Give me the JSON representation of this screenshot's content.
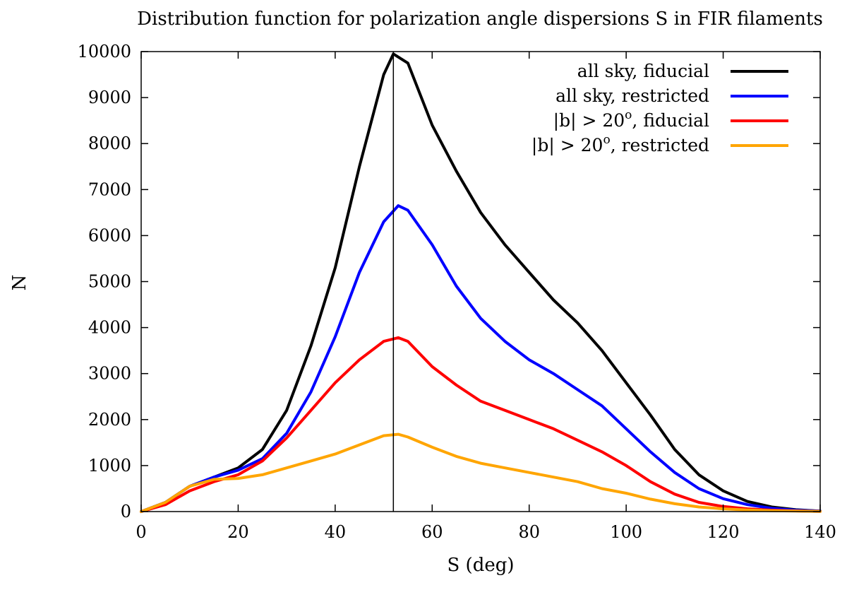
{
  "chart_data": {
    "type": "line",
    "title": "Distribution function for polarization angle dispersions S in FIR filaments",
    "xlabel": "S (deg)",
    "ylabel": "N",
    "xlim": [
      0,
      140
    ],
    "ylim": [
      0,
      10000
    ],
    "xticks": [
      0,
      20,
      40,
      60,
      80,
      100,
      120,
      140
    ],
    "yticks": [
      0,
      1000,
      2000,
      3000,
      4000,
      5000,
      6000,
      7000,
      8000,
      9000,
      10000
    ],
    "grid": false,
    "legend_position": "top-right",
    "reference_line": {
      "x": 52
    },
    "series": [
      {
        "name": "all sky, fiducial",
        "color": "#000000",
        "x": [
          0,
          5,
          10,
          15,
          20,
          25,
          30,
          35,
          40,
          45,
          50,
          52,
          55,
          60,
          65,
          70,
          75,
          80,
          85,
          90,
          95,
          100,
          105,
          110,
          115,
          120,
          125,
          130,
          135,
          140
        ],
        "y": [
          0,
          200,
          550,
          750,
          950,
          1350,
          2200,
          3600,
          5300,
          7500,
          9500,
          9950,
          9750,
          8400,
          7400,
          6500,
          5800,
          5200,
          4600,
          4100,
          3500,
          2800,
          2100,
          1350,
          800,
          450,
          220,
          100,
          40,
          10
        ]
      },
      {
        "name": "all sky, restricted",
        "color": "#0000ff",
        "x": [
          0,
          5,
          10,
          15,
          20,
          25,
          30,
          35,
          40,
          45,
          50,
          53,
          55,
          60,
          65,
          70,
          75,
          80,
          85,
          90,
          95,
          100,
          105,
          110,
          115,
          120,
          125,
          130,
          135,
          140
        ],
        "y": [
          0,
          200,
          550,
          750,
          900,
          1150,
          1700,
          2600,
          3800,
          5200,
          6300,
          6650,
          6550,
          5800,
          4900,
          4200,
          3700,
          3300,
          3000,
          2650,
          2300,
          1800,
          1300,
          850,
          500,
          280,
          150,
          70,
          30,
          10
        ]
      },
      {
        "name": "|b| > 20°, fiducial",
        "color": "#ff0000",
        "x": [
          0,
          5,
          10,
          15,
          20,
          25,
          30,
          35,
          40,
          45,
          50,
          53,
          55,
          60,
          65,
          70,
          75,
          80,
          85,
          90,
          95,
          100,
          105,
          110,
          115,
          120,
          125,
          130,
          135,
          140
        ],
        "y": [
          0,
          150,
          450,
          650,
          800,
          1100,
          1600,
          2200,
          2800,
          3300,
          3700,
          3780,
          3700,
          3150,
          2750,
          2400,
          2200,
          2000,
          1800,
          1550,
          1300,
          1000,
          650,
          380,
          200,
          110,
          60,
          30,
          15,
          5
        ]
      },
      {
        "name": "|b| > 20°, restricted",
        "color": "#ffa500",
        "x": [
          0,
          5,
          10,
          15,
          20,
          25,
          30,
          35,
          40,
          45,
          50,
          53,
          55,
          60,
          65,
          70,
          75,
          80,
          85,
          90,
          95,
          100,
          105,
          110,
          115,
          120,
          125,
          130,
          135,
          140
        ],
        "y": [
          0,
          200,
          550,
          700,
          720,
          800,
          950,
          1100,
          1250,
          1450,
          1650,
          1680,
          1620,
          1400,
          1200,
          1050,
          950,
          850,
          750,
          650,
          500,
          400,
          270,
          170,
          100,
          60,
          35,
          20,
          10,
          5
        ]
      }
    ],
    "legend": [
      {
        "text": "all sky, fiducial"
      },
      {
        "text": "all sky, restricted"
      },
      {
        "text_before": "|b| > 20",
        "sup": "o",
        "text_after": ", fiducial"
      },
      {
        "text_before": "|b| > 20",
        "sup": "o",
        "text_after": ", restricted"
      }
    ]
  }
}
